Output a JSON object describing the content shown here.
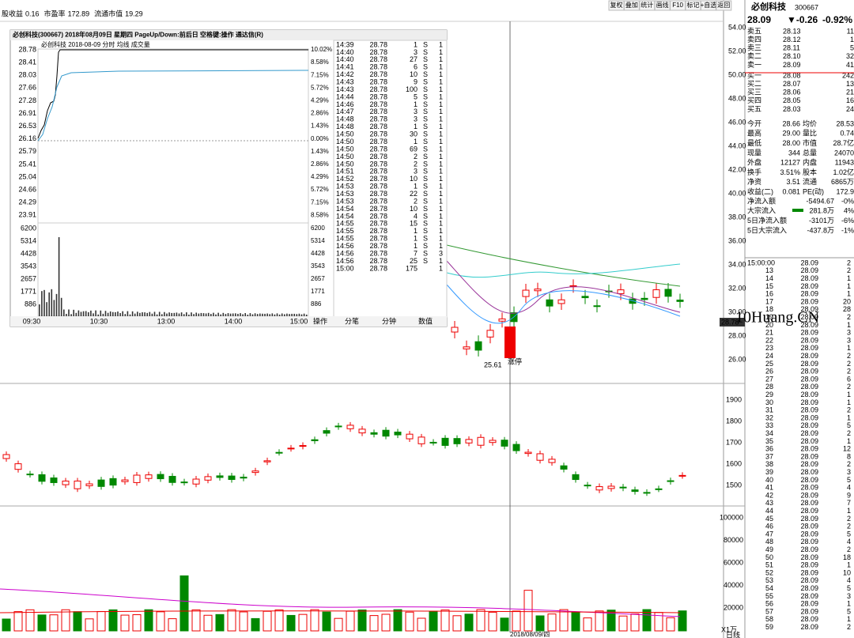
{
  "top_bar": {
    "items": [
      {
        "label": "股收益",
        "value": "0.16"
      },
      {
        "label": "市盈率",
        "value": "172.89"
      },
      {
        "label": "流通市值",
        "value": "19.29"
      }
    ],
    "buttons": [
      "复权",
      "叠加",
      "统计",
      "画线",
      "F10",
      "标记",
      "+自选",
      "返回"
    ]
  },
  "popup": {
    "title": "必创科技(300667)  2018年08月09日 星期四  PageUp/Down:前后日 空格键:操作 通达信(R)",
    "subtitle": "必创科技  2018-08-09 分时  均线  成交量",
    "price_labels": [
      "28.78",
      "28.41",
      "28.03",
      "27.66",
      "27.28",
      "26.91",
      "26.53",
      "26.16",
      "25.79",
      "25.41",
      "25.04",
      "24.66",
      "24.29",
      "23.91"
    ],
    "pct_labels": [
      "10.02%",
      "8.58%",
      "7.15%",
      "5.72%",
      "4.29%",
      "2.86%",
      "1.43%",
      "0.00%",
      "1.43%",
      "2.86%",
      "4.29%",
      "5.72%",
      "7.15%",
      "8.58%"
    ],
    "volume_labels": [
      "6200",
      "5314",
      "4428",
      "3543",
      "2657",
      "1771",
      "886"
    ],
    "time_labels": [
      "09:30",
      "10:30",
      "13:00",
      "14:00",
      "15:00"
    ],
    "ticks": [
      [
        "14:39",
        "28.78",
        "1",
        "S",
        "1"
      ],
      [
        "14:40",
        "28.78",
        "3",
        "S",
        "1"
      ],
      [
        "14:40",
        "28.78",
        "27",
        "S",
        "1"
      ],
      [
        "14:41",
        "28.78",
        "6",
        "S",
        "1"
      ],
      [
        "14:42",
        "28.78",
        "10",
        "S",
        "1"
      ],
      [
        "14:43",
        "28.78",
        "9",
        "S",
        "1"
      ],
      [
        "14:43",
        "28.78",
        "100",
        "S",
        "1"
      ],
      [
        "14:44",
        "28.78",
        "5",
        "S",
        "1"
      ],
      [
        "14:46",
        "28.78",
        "1",
        "S",
        "1"
      ],
      [
        "14:47",
        "28.78",
        "3",
        "S",
        "1"
      ],
      [
        "14:48",
        "28.78",
        "3",
        "S",
        "1"
      ],
      [
        "14:48",
        "28.78",
        "1",
        "S",
        "1"
      ],
      [
        "14:50",
        "28.78",
        "30",
        "S",
        "1"
      ],
      [
        "14:50",
        "28.78",
        "1",
        "S",
        "1"
      ],
      [
        "14:50",
        "28.78",
        "69",
        "S",
        "1"
      ],
      [
        "14:50",
        "28.78",
        "2",
        "S",
        "1"
      ],
      [
        "14:50",
        "28.78",
        "2",
        "S",
        "1"
      ],
      [
        "14:51",
        "28.78",
        "3",
        "S",
        "1"
      ],
      [
        "14:52",
        "28.78",
        "10",
        "S",
        "1"
      ],
      [
        "14:53",
        "28.78",
        "1",
        "S",
        "1"
      ],
      [
        "14:53",
        "28.78",
        "22",
        "S",
        "1"
      ],
      [
        "14:53",
        "28.78",
        "2",
        "S",
        "1"
      ],
      [
        "14:54",
        "28.78",
        "10",
        "S",
        "1"
      ],
      [
        "14:54",
        "28.78",
        "4",
        "S",
        "1"
      ],
      [
        "14:55",
        "28.78",
        "15",
        "S",
        "1"
      ],
      [
        "14:55",
        "28.78",
        "1",
        "S",
        "1"
      ],
      [
        "14:55",
        "28.78",
        "1",
        "S",
        "1"
      ],
      [
        "14:56",
        "28.78",
        "1",
        "S",
        "1"
      ],
      [
        "14:56",
        "28.78",
        "7",
        "S",
        "3"
      ],
      [
        "14:56",
        "28.78",
        "25",
        "S",
        "1"
      ],
      [
        "15:00",
        "28.78",
        "175",
        "1"
      ]
    ],
    "tabs": [
      "操作",
      "分笔",
      "分钟",
      "数值"
    ]
  },
  "main_chart": {
    "axis": [
      {
        "value": 54,
        "label": "54.00"
      },
      {
        "value": 52,
        "label": "52.00"
      },
      {
        "value": 50,
        "label": "50.00"
      },
      {
        "value": 48,
        "label": "48.00"
      },
      {
        "value": 46,
        "label": "46.00"
      },
      {
        "value": 44,
        "label": "44.00"
      },
      {
        "value": 42,
        "label": "42.00"
      },
      {
        "value": 40,
        "label": "40.00"
      },
      {
        "value": 38,
        "label": "38.00"
      },
      {
        "value": 36,
        "label": "36.00"
      },
      {
        "value": 34,
        "label": "34.00"
      },
      {
        "value": 32,
        "label": "32.00"
      },
      {
        "value": 30,
        "label": "30.00"
      },
      {
        "value": 28,
        "label": "28.00"
      },
      {
        "value": 26,
        "label": "26.00"
      }
    ],
    "current_price": "28.78",
    "low_label": "25.61",
    "limit_label": "涨停",
    "watermark": "10Huang.CN"
  },
  "middle_chart": {
    "axis": [
      1900,
      1800,
      1700,
      1600,
      1500
    ]
  },
  "volume_chart": {
    "axis": [
      100000,
      80000,
      60000,
      40000,
      20000
    ],
    "unit": "X1万",
    "date": "2018/08/09/四",
    "period": "日线"
  },
  "quote": {
    "name": "必创科技",
    "code": "300667",
    "price": "28.09",
    "change": "▼-0.26",
    "pct": "-0.92%",
    "book": [
      [
        "卖五",
        "28.13",
        "11"
      ],
      [
        "卖四",
        "28.12",
        "1"
      ],
      [
        "卖三",
        "28.11",
        "5"
      ],
      [
        "卖二",
        "28.10",
        "32"
      ],
      [
        "卖一",
        "28.09",
        "41"
      ],
      [
        "买一",
        "28.08",
        "242"
      ],
      [
        "买二",
        "28.07",
        "13"
      ],
      [
        "买三",
        "28.06",
        "21"
      ],
      [
        "买四",
        "28.05",
        "16"
      ],
      [
        "买五",
        "28.03",
        "24"
      ]
    ],
    "stats": [
      [
        "今开",
        "28.66",
        "均价",
        "28.53"
      ],
      [
        "最高",
        "29.00",
        "量比",
        "0.74"
      ],
      [
        "最低",
        "28.00",
        "市值",
        "28.7亿"
      ],
      [
        "现量",
        "344",
        "总量",
        "24070"
      ],
      [
        "外盘",
        "12127",
        "内盘",
        "11943"
      ],
      [
        "换手",
        "3.51%",
        "股本",
        "1.02亿"
      ],
      [
        "净资",
        "3.51",
        "流通",
        "6865万"
      ],
      [
        "收益(二)",
        "0.081",
        "PE(动)",
        "172.9"
      ]
    ],
    "flows": [
      [
        "净流入额",
        "-5494.67",
        "-0%"
      ],
      [
        "大宗流入",
        "281.8万",
        "4%"
      ],
      [
        "5日净流入额",
        "-3101万",
        "-6%"
      ],
      [
        "5日大宗流入",
        "-437.8万",
        "-1%"
      ]
    ],
    "trades": [
      [
        "15:00:00",
        "28.09",
        "2"
      ],
      [
        "13",
        "28.09",
        "2"
      ],
      [
        "14",
        "28.09",
        "1"
      ],
      [
        "15",
        "28.09",
        "1"
      ],
      [
        "16",
        "28.09",
        "1"
      ],
      [
        "17",
        "28.09",
        "20"
      ],
      [
        "18",
        "28.09",
        "28"
      ],
      [
        "19",
        "28.09",
        "2"
      ],
      [
        "20",
        "28.09",
        "1"
      ],
      [
        "21",
        "28.09",
        "3"
      ],
      [
        "22",
        "28.09",
        "3"
      ],
      [
        "23",
        "28.09",
        "1"
      ],
      [
        "24",
        "28.09",
        "2"
      ],
      [
        "25",
        "28.09",
        "2"
      ],
      [
        "26",
        "28.09",
        "2"
      ],
      [
        "27",
        "28.09",
        "6"
      ],
      [
        "28",
        "28.09",
        "2"
      ],
      [
        "29",
        "28.09",
        "1"
      ],
      [
        "30",
        "28.09",
        "1"
      ],
      [
        "31",
        "28.09",
        "2"
      ],
      [
        "32",
        "28.09",
        "1"
      ],
      [
        "33",
        "28.09",
        "5"
      ],
      [
        "34",
        "28.09",
        "2"
      ],
      [
        "35",
        "28.09",
        "1"
      ],
      [
        "36",
        "28.09",
        "12"
      ],
      [
        "37",
        "28.09",
        "8"
      ],
      [
        "38",
        "28.09",
        "2"
      ],
      [
        "39",
        "28.09",
        "3"
      ],
      [
        "40",
        "28.09",
        "5"
      ],
      [
        "41",
        "28.09",
        "4"
      ],
      [
        "42",
        "28.09",
        "9"
      ],
      [
        "43",
        "28.09",
        "7"
      ],
      [
        "44",
        "28.09",
        "1"
      ],
      [
        "45",
        "28.09",
        "2"
      ],
      [
        "46",
        "28.09",
        "2"
      ],
      [
        "47",
        "28.09",
        "5"
      ],
      [
        "48",
        "28.09",
        "4"
      ],
      [
        "49",
        "28.09",
        "2"
      ],
      [
        "50",
        "28.09",
        "18"
      ],
      [
        "51",
        "28.09",
        "1"
      ],
      [
        "52",
        "28.09",
        "10"
      ],
      [
        "53",
        "28.09",
        "4"
      ],
      [
        "54",
        "28.09",
        "5"
      ],
      [
        "55",
        "28.09",
        "3"
      ],
      [
        "56",
        "28.09",
        "1"
      ],
      [
        "57",
        "28.09",
        "5"
      ],
      [
        "58",
        "28.09",
        "1"
      ],
      [
        "59",
        "28.09",
        "2"
      ]
    ]
  }
}
